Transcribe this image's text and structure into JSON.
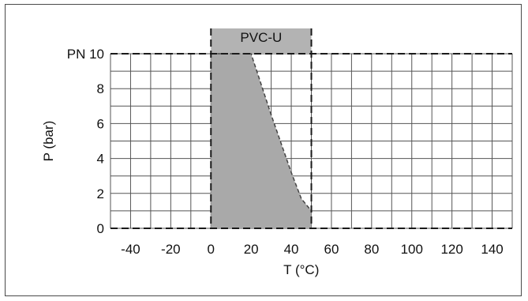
{
  "chart_data": {
    "type": "area",
    "title": "PVC-U",
    "xlabel": "T (°C)",
    "ylabel": "P (bar)",
    "xlim": [
      -50,
      150
    ],
    "ylim": [
      0,
      10
    ],
    "grid": true,
    "x_ticks": [
      -40,
      -20,
      0,
      20,
      40,
      60,
      80,
      100,
      120,
      140
    ],
    "x_tick_labels": [
      "-40",
      "-20",
      "0",
      "20",
      "40",
      "60",
      "80",
      "100",
      "120",
      "140"
    ],
    "y_ticks": [
      0,
      2,
      4,
      6,
      8,
      10
    ],
    "y_tick_labels": [
      "0",
      "2",
      "4",
      "6",
      "8",
      "PN 10"
    ],
    "series": [
      {
        "x": [
          0,
          20,
          30,
          40,
          45,
          50,
          50
        ],
        "y": [
          10,
          10,
          6.5,
          3.2,
          1.7,
          1.0,
          0
        ]
      }
    ],
    "range_band": [
      0,
      50
    ],
    "colors": {
      "fill": "#a9a9a9",
      "band": "#b3b3b3",
      "grid": "#555555",
      "dashed": "#1a1a1a"
    }
  }
}
